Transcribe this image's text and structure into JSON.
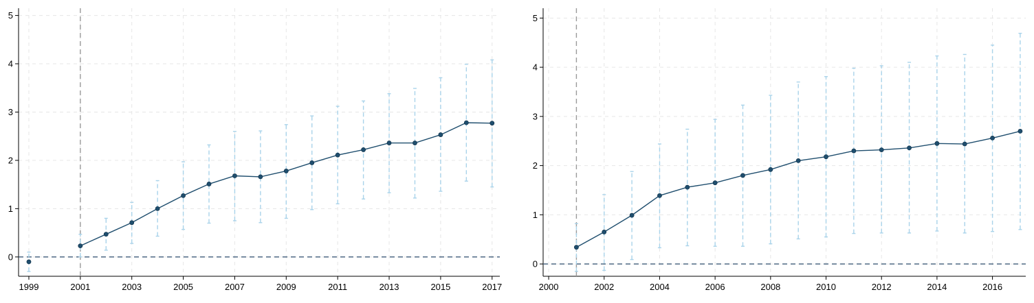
{
  "chart_data": [
    {
      "type": "line",
      "title": "",
      "xlabel": "",
      "ylabel": "",
      "xlim": [
        1998.6,
        2017.3
      ],
      "ylim": [
        -0.4,
        5.15
      ],
      "x_ticks": [
        1999,
        2001,
        2003,
        2005,
        2007,
        2009,
        2011,
        2013,
        2015,
        2017
      ],
      "y_ticks": [
        0,
        1,
        2,
        3,
        4,
        5
      ],
      "reference_vline": 2001,
      "reference_hline": 0,
      "grid": true,
      "series": [
        {
          "x": [
            1999,
            2001,
            2002,
            2003,
            2004,
            2005,
            2006,
            2007,
            2008,
            2009,
            2010,
            2011,
            2012,
            2013,
            2014,
            2015,
            2016,
            2017
          ],
          "values": [
            -0.1,
            0.23,
            0.47,
            0.71,
            1.0,
            1.27,
            1.51,
            1.68,
            1.66,
            1.78,
            1.95,
            2.11,
            2.22,
            2.36,
            2.36,
            2.53,
            2.78,
            2.77
          ],
          "ci_low": [
            -0.3,
            0.0,
            0.14,
            0.28,
            0.43,
            0.57,
            0.7,
            0.75,
            0.71,
            0.8,
            0.98,
            1.1,
            1.2,
            1.33,
            1.22,
            1.36,
            1.57,
            1.45
          ],
          "ci_high": [
            0.1,
            0.47,
            0.8,
            1.13,
            1.58,
            1.97,
            2.32,
            2.6,
            2.61,
            2.74,
            2.92,
            3.12,
            3.23,
            3.38,
            3.49,
            3.71,
            3.99,
            4.08
          ],
          "connected_from": 2001
        }
      ]
    },
    {
      "type": "line",
      "title": "",
      "xlabel": "",
      "ylabel": "",
      "xlim": [
        1999.8,
        2017.2
      ],
      "ylim": [
        -0.25,
        5.2
      ],
      "x_ticks": [
        2000,
        2002,
        2004,
        2006,
        2008,
        2010,
        2012,
        2014,
        2016
      ],
      "y_ticks": [
        0,
        1,
        2,
        3,
        4,
        5
      ],
      "reference_vline": 2001,
      "reference_hline": 0,
      "grid": true,
      "series": [
        {
          "x": [
            2001,
            2002,
            2003,
            2004,
            2005,
            2006,
            2007,
            2008,
            2009,
            2010,
            2011,
            2012,
            2013,
            2014,
            2015,
            2016,
            2017
          ],
          "values": [
            0.34,
            0.65,
            0.99,
            1.39,
            1.56,
            1.65,
            1.8,
            1.92,
            2.1,
            2.18,
            2.3,
            2.32,
            2.36,
            2.45,
            2.44,
            2.56,
            2.7
          ],
          "ci_low": [
            -0.15,
            -0.13,
            0.09,
            0.33,
            0.37,
            0.36,
            0.36,
            0.41,
            0.51,
            0.55,
            0.62,
            0.63,
            0.63,
            0.67,
            0.63,
            0.66,
            0.7
          ],
          "ci_high": [
            0.82,
            1.41,
            1.88,
            2.44,
            2.74,
            2.94,
            3.23,
            3.43,
            3.7,
            3.81,
            3.98,
            4.03,
            4.1,
            4.23,
            4.26,
            4.45,
            4.69
          ],
          "connected_from": 2001
        }
      ]
    }
  ]
}
